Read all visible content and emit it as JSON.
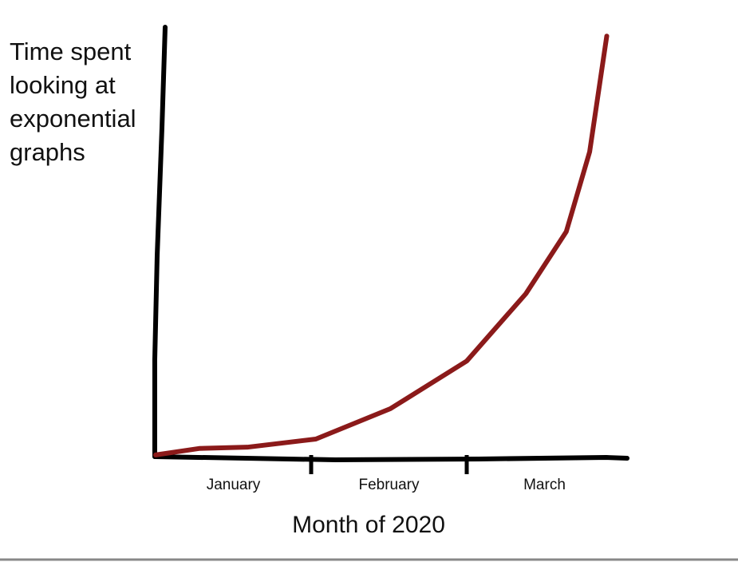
{
  "chart_data": {
    "type": "line",
    "y_label": "Time spent looking at exponential graphs",
    "x_label": "Month of 2020",
    "categories": [
      "January",
      "February",
      "March"
    ],
    "xlim": [
      0,
      3
    ],
    "ylim": [
      0,
      100
    ],
    "series": [
      {
        "color": "#8b1a1a",
        "x": [
          0,
          0.28,
          0.59,
          1.03,
          1.51,
          2.0,
          2.38,
          2.64,
          2.79,
          2.9
        ],
        "values": [
          0.4,
          1.9,
          2.2,
          4.1,
          11.2,
          22.3,
          38,
          52.5,
          71.1,
          98.1
        ]
      }
    ]
  }
}
